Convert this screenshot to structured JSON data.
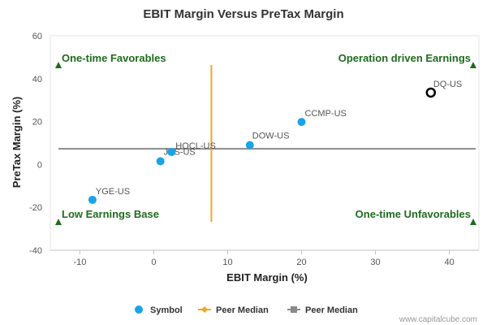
{
  "chart_data": {
    "type": "scatter",
    "title": "EBIT Margin Versus PreTax Margin",
    "xlabel": "EBIT Margin (%)",
    "ylabel": "PreTax Margin (%)",
    "xlim": [
      -14,
      44
    ],
    "ylim": [
      -40,
      60
    ],
    "xticks": [
      -10,
      0,
      10,
      20,
      30,
      40
    ],
    "yticks": [
      -40,
      -20,
      0,
      20,
      40,
      60
    ],
    "xtick_labels": [
      "-10",
      "0",
      "10",
      "20",
      "30",
      "40"
    ],
    "ytick_labels": [
      "-40",
      "-20",
      "0",
      "20",
      "40",
      "60"
    ],
    "grid": false,
    "series": [
      {
        "name": "Symbol",
        "color": "#1aa3e8",
        "points": [
          {
            "label": "YGE-US",
            "x": -8.3,
            "y": -16.5
          },
          {
            "label": "JKS-US",
            "x": 0.9,
            "y": 1.5
          },
          {
            "label": "HOCL-US",
            "x": 2.4,
            "y": 5.8
          },
          {
            "label": "DOW-US",
            "x": 13.0,
            "y": 9.0
          },
          {
            "label": "CCMP-US",
            "x": 20.0,
            "y": 19.8
          }
        ]
      },
      {
        "name": "DQ-US",
        "color": "#000000",
        "marker": "hollow-circle",
        "points": [
          {
            "label": "DQ-US",
            "x": 37.5,
            "y": 33.5
          }
        ]
      }
    ],
    "peer_median_x": {
      "name": "Peer Median",
      "value": 7.8,
      "color": "#f5a623"
    },
    "peer_median_y": {
      "name": "Peer Median",
      "value": 7.3,
      "color": "#8a8a8a"
    },
    "quadrants": [
      {
        "text": "One-time Favorables",
        "pos": "top-left"
      },
      {
        "text": "Operation driven Earnings",
        "pos": "top-right"
      },
      {
        "text": "Low Earnings Base",
        "pos": "bottom-left"
      },
      {
        "text": "One-time Unfavorables",
        "pos": "bottom-right"
      }
    ],
    "quadrant_color": "#1e6b1e",
    "legend": {
      "placement": "bottom-center",
      "items": [
        {
          "label": "Symbol",
          "kind": "dot",
          "color": "#1aa3e8"
        },
        {
          "label": "Peer Median",
          "kind": "line-diamond",
          "color": "#f5a623"
        },
        {
          "label": "Peer Median",
          "kind": "line-square",
          "color": "#8a8a8a"
        }
      ]
    },
    "credit": "www.capitalcube.com"
  }
}
